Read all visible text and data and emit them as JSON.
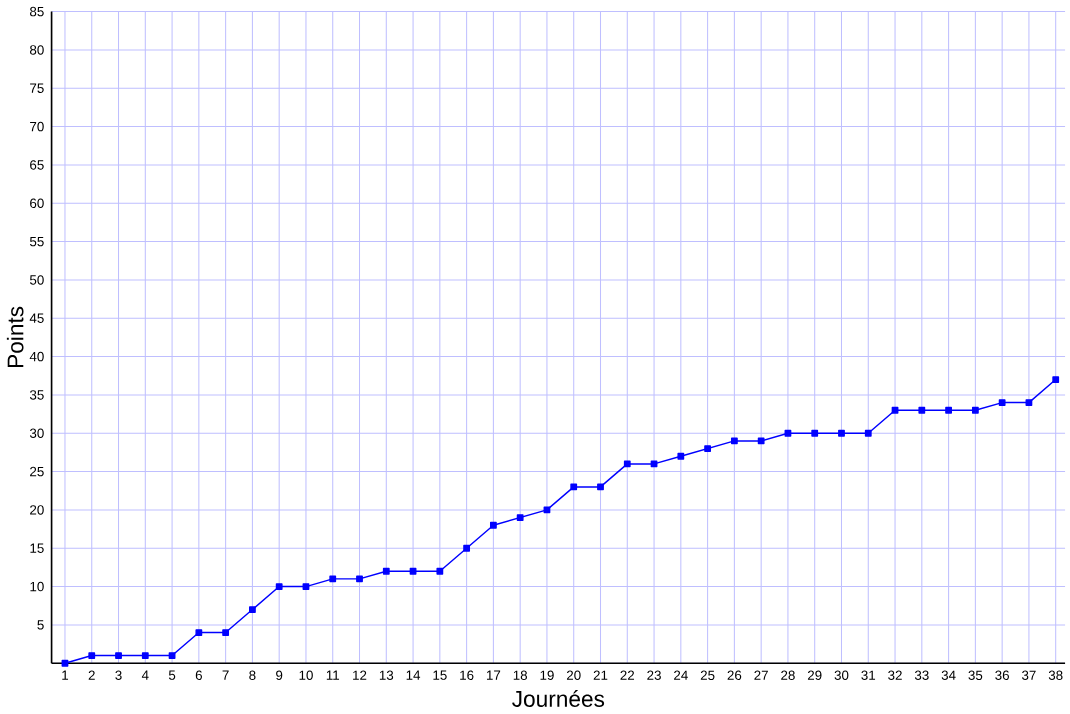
{
  "chart_data": {
    "type": "line",
    "xlabel": "Journées",
    "ylabel": "Points",
    "categories": [
      "1",
      "2",
      "3",
      "4",
      "5",
      "6",
      "7",
      "8",
      "9",
      "10",
      "11",
      "12",
      "13",
      "14",
      "15",
      "16",
      "17",
      "18",
      "19",
      "20",
      "21",
      "22",
      "23",
      "24",
      "25",
      "26",
      "27",
      "28",
      "29",
      "30",
      "31",
      "32",
      "33",
      "34",
      "35",
      "36",
      "37",
      "38"
    ],
    "series": [
      {
        "color": "#0000ff",
        "values": [
          0,
          1,
          1,
          1,
          1,
          4,
          4,
          7,
          10,
          10,
          11,
          11,
          12,
          12,
          12,
          15,
          18,
          19,
          20,
          23,
          23,
          26,
          26,
          27,
          28,
          29,
          29,
          30,
          30,
          30,
          30,
          33,
          33,
          33,
          33,
          34,
          34,
          37
        ]
      }
    ],
    "ylim": [
      0,
      85
    ],
    "yticks": [
      {
        "value": 0,
        "label": null
      },
      5,
      10,
      15,
      20,
      25,
      30,
      35,
      40,
      45,
      50,
      55,
      60,
      65,
      70,
      75,
      80,
      85
    ],
    "grid": true,
    "marker": "square",
    "line_style": "solid"
  }
}
